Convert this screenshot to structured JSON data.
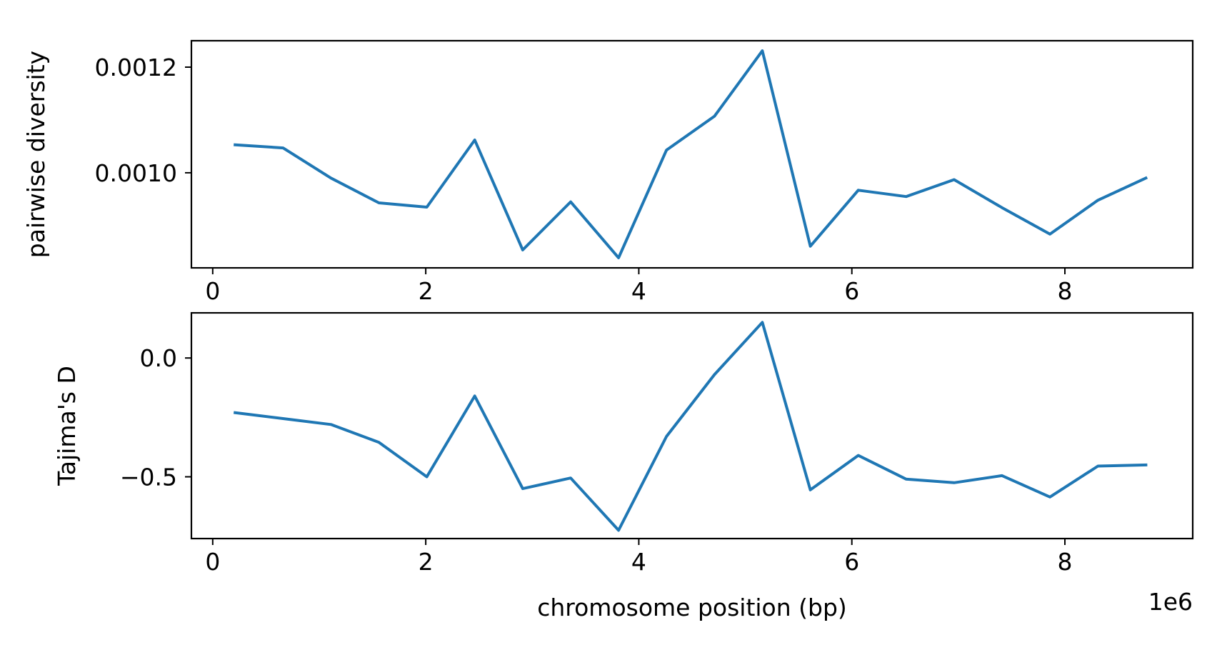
{
  "chart_data": [
    {
      "type": "line",
      "title": "",
      "xlabel": "",
      "ylabel": "pairwise diversity",
      "xlim": [
        -200000,
        9200000
      ],
      "ylim": [
        0.00082,
        0.00125
      ],
      "xticks": [
        0,
        2000000,
        4000000,
        6000000,
        8000000
      ],
      "xtick_labels": [
        "0",
        "2",
        "4",
        "6",
        "8"
      ],
      "yticks": [
        0.001,
        0.0012
      ],
      "ytick_labels": [
        "0.0010",
        "0.0012"
      ],
      "grid": false,
      "color": "#1f77b4",
      "x": [
        210000,
        660000,
        1110000,
        1560000,
        2010000,
        2460000,
        2910000,
        3360000,
        3810000,
        4260000,
        4710000,
        5160000,
        5610000,
        6060000,
        6510000,
        6960000,
        7410000,
        7860000,
        8310000,
        8760000
      ],
      "y": [
        0.001053,
        0.001047,
        0.00099,
        0.000943,
        0.000935,
        0.001062,
        0.000854,
        0.000945,
        0.000839,
        0.001043,
        0.001107,
        0.001231,
        0.000861,
        0.000967,
        0.000955,
        0.000987,
        0.000934,
        0.000884,
        0.000948,
        0.00099
      ]
    },
    {
      "type": "line",
      "title": "",
      "xlabel": "chromosome position (bp)",
      "ylabel": "Tajima's D",
      "x_offset_label": "1e6",
      "xlim": [
        -200000,
        9200000
      ],
      "ylim": [
        -0.76,
        0.19
      ],
      "xticks": [
        0,
        2000000,
        4000000,
        6000000,
        8000000
      ],
      "xtick_labels": [
        "0",
        "2",
        "4",
        "6",
        "8"
      ],
      "yticks": [
        0.0,
        -0.5
      ],
      "ytick_labels": [
        "0.0",
        "−0.5"
      ],
      "grid": false,
      "color": "#1f77b4",
      "x": [
        210000,
        660000,
        1110000,
        1560000,
        2010000,
        2460000,
        2910000,
        3360000,
        3810000,
        4260000,
        4710000,
        5160000,
        5610000,
        6060000,
        6510000,
        6960000,
        7410000,
        7860000,
        8310000,
        8760000
      ],
      "y": [
        -0.23,
        -0.255,
        -0.28,
        -0.355,
        -0.5,
        -0.16,
        -0.55,
        -0.505,
        -0.725,
        -0.33,
        -0.07,
        0.15,
        -0.555,
        -0.41,
        -0.51,
        -0.525,
        -0.495,
        -0.585,
        -0.455,
        -0.45
      ]
    }
  ]
}
